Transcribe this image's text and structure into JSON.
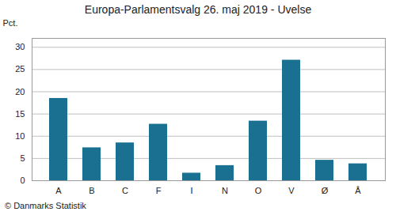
{
  "chart_data": {
    "type": "bar",
    "title": "Europa-Parlamentsvalg 26. maj 2019 - Uvelse",
    "categories": [
      "A",
      "B",
      "C",
      "F",
      "I",
      "N",
      "O",
      "V",
      "Ø",
      "Å"
    ],
    "values": [
      18.5,
      7.4,
      8.5,
      12.7,
      1.7,
      3.4,
      13.4,
      27.1,
      4.6,
      3.8
    ],
    "color": "#1a7090",
    "ylabel": "Pct.",
    "ylim": [
      0,
      32
    ],
    "yticks": [
      0,
      5,
      10,
      15,
      20,
      25,
      30
    ],
    "grid": true,
    "caption": "© Danmarks Statistik"
  }
}
